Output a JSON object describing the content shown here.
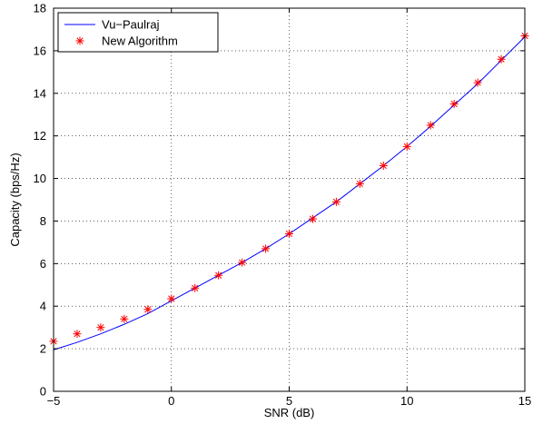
{
  "chart_data": {
    "type": "line",
    "title": "",
    "xlabel": "SNR (dB)",
    "ylabel": "Capacity (bps/Hz)",
    "xlim": [
      -5,
      15
    ],
    "ylim": [
      0,
      18
    ],
    "xticks": [
      -5,
      0,
      5,
      10,
      15
    ],
    "yticks": [
      0,
      2,
      4,
      6,
      8,
      10,
      12,
      14,
      16,
      18
    ],
    "grid": true,
    "legend_position": "top-left",
    "series": [
      {
        "name": "Vu−Paulraj",
        "style": "line",
        "color": "#0000ff",
        "x": [
          -5,
          -4,
          -3,
          -2,
          -1,
          0,
          1,
          2,
          3,
          4,
          5,
          6,
          7,
          8,
          9,
          10,
          11,
          12,
          13,
          14,
          15
        ],
        "y": [
          1.95,
          2.3,
          2.7,
          3.15,
          3.65,
          4.25,
          4.85,
          5.45,
          6.05,
          6.7,
          7.4,
          8.15,
          8.9,
          9.75,
          10.6,
          11.5,
          12.45,
          13.45,
          14.45,
          15.55,
          16.65
        ]
      },
      {
        "name": "New Algorithm",
        "style": "marker",
        "marker": "*",
        "color": "#ff0000",
        "x": [
          -5,
          -4,
          -3,
          -2,
          -1,
          0,
          1,
          2,
          3,
          4,
          5,
          6,
          7,
          8,
          9,
          10,
          11,
          12,
          13,
          14,
          15
        ],
        "y": [
          2.35,
          2.7,
          3.0,
          3.4,
          3.85,
          4.35,
          4.85,
          5.45,
          6.05,
          6.7,
          7.4,
          8.1,
          8.9,
          9.75,
          10.6,
          11.5,
          12.5,
          13.5,
          14.5,
          15.6,
          16.7
        ]
      }
    ]
  }
}
